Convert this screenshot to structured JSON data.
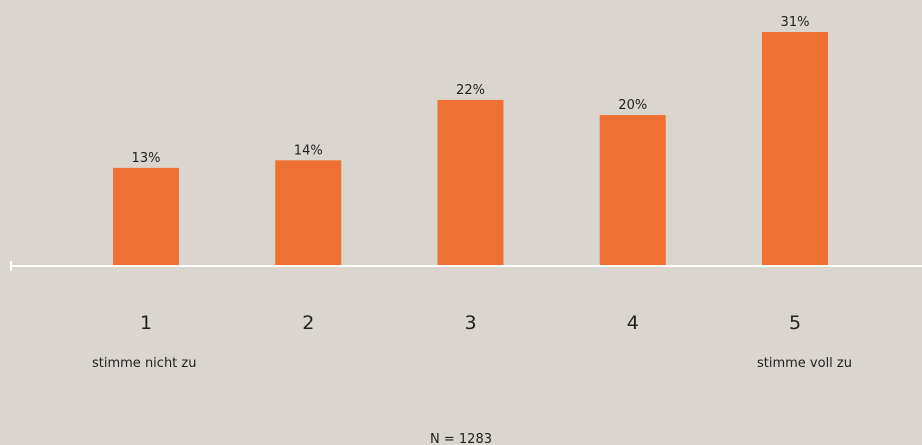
{
  "chart_data": {
    "type": "bar",
    "categories": [
      "1",
      "2",
      "3",
      "4",
      "5"
    ],
    "values": [
      13,
      14,
      22,
      20,
      31
    ],
    "value_labels": [
      "13%",
      "14%",
      "22%",
      "20%",
      "31%"
    ],
    "unit": "%",
    "scale_labels": {
      "low": "stimme nicht zu",
      "high": "stimme voll zu"
    },
    "footnote": "N = 1283",
    "bar_color": "#ee7033",
    "axis_color": "#ffffff",
    "grid": false,
    "ylim": [
      0,
      31
    ]
  }
}
